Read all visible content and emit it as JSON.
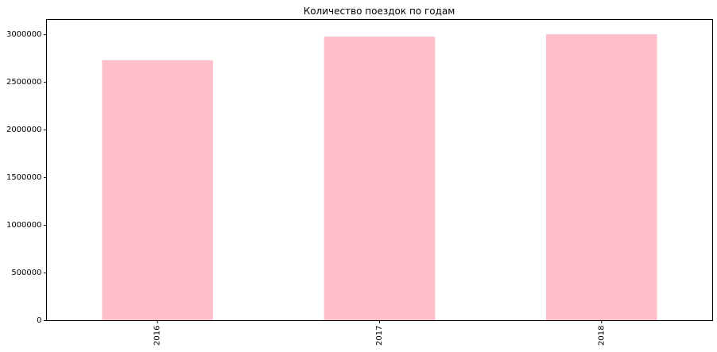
{
  "chart_data": {
    "type": "bar",
    "title": "Количество поездок по годам",
    "xlabel": "",
    "ylabel": "",
    "categories": [
      "2016",
      "2017",
      "2018"
    ],
    "values": [
      2733000,
      2980000,
      3005000
    ],
    "ylim": [
      0,
      3160000
    ],
    "yticks": [
      0,
      500000,
      1000000,
      1500000,
      2000000,
      2500000,
      3000000
    ],
    "ytick_labels": [
      "0",
      "500000",
      "1000000",
      "1500000",
      "2000000",
      "2500000",
      "3000000"
    ],
    "x_tick_rotation": 90,
    "grid": false,
    "legend": "none",
    "bar_color": "#ffc0cb"
  }
}
